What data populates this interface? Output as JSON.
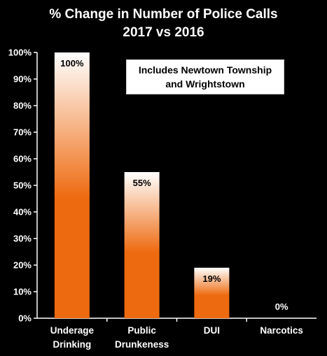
{
  "chart_data": {
    "type": "bar",
    "title_line1": "% Change in Number of Police Calls",
    "title_line2": "2017 vs 2016",
    "categories": [
      "Underage\nDrinking",
      "Public\nDrunkeness",
      "DUI",
      "Narcotics"
    ],
    "values": [
      100,
      55,
      19,
      0
    ],
    "value_labels": [
      "100%",
      "55%",
      "19%",
      "0%"
    ],
    "y_ticks": [
      "0%",
      "10%",
      "20%",
      "30%",
      "40%",
      "50%",
      "60%",
      "70%",
      "80%",
      "90%",
      "100%"
    ],
    "ylim": [
      0,
      100
    ],
    "xlabel": "",
    "ylabel": "",
    "grid": false,
    "annotation": "Includes Newtown Township\nand Wrightstown",
    "colors": {
      "background": "#000000",
      "bar_base": "#ee6a10",
      "bar_top": "#ffffff",
      "axis": "#ffffff",
      "text": "#ffffff"
    }
  }
}
